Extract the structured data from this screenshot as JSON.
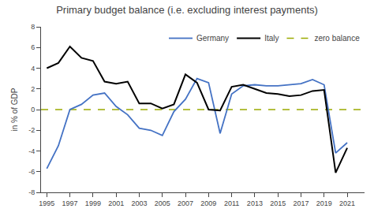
{
  "chart_data": {
    "type": "line",
    "title": "Primary budget balance (i.e. excluding interest payments)",
    "y_label": "in % of GDP",
    "x": [
      1995,
      1996,
      1997,
      1998,
      1999,
      2000,
      2001,
      2002,
      2003,
      2004,
      2005,
      2006,
      2007,
      2008,
      2009,
      2010,
      2011,
      2012,
      2013,
      2014,
      2015,
      2016,
      2017,
      2018,
      2019,
      2020,
      2021
    ],
    "series": [
      {
        "name": "Germany",
        "color": "#4472C4",
        "values": [
          -5.7,
          -3.5,
          0.0,
          0.5,
          1.4,
          1.6,
          0.3,
          -0.5,
          -1.8,
          -2.0,
          -2.5,
          -0.2,
          1.0,
          3.0,
          2.6,
          -2.3,
          1.5,
          2.3,
          2.4,
          2.3,
          2.3,
          2.4,
          2.5,
          2.9,
          2.4,
          -4.2,
          -3.2
        ]
      },
      {
        "name": "Italy",
        "color": "#000000",
        "values": [
          4.0,
          4.5,
          6.1,
          5.0,
          4.7,
          2.7,
          2.5,
          2.7,
          0.6,
          0.6,
          0.1,
          0.5,
          3.4,
          2.6,
          0.0,
          -0.1,
          2.2,
          2.4,
          2.0,
          1.6,
          1.5,
          1.3,
          1.4,
          1.8,
          1.9,
          -6.1,
          -3.7
        ]
      },
      {
        "name": "zero balance",
        "color": "#9aaa00",
        "type": "hline",
        "line_style": "dashed",
        "y": 0
      }
    ],
    "xlim": [
      1994.5,
      2022.5
    ],
    "xticks": [
      1995,
      1997,
      1999,
      2001,
      2003,
      2005,
      2007,
      2009,
      2011,
      2013,
      2015,
      2017,
      2019,
      2021
    ],
    "ylim": [
      -8,
      8
    ],
    "yticks": [
      -8,
      -6,
      -4,
      -2,
      0,
      2,
      4,
      6,
      8
    ],
    "grid": false,
    "legend": "upper right"
  }
}
